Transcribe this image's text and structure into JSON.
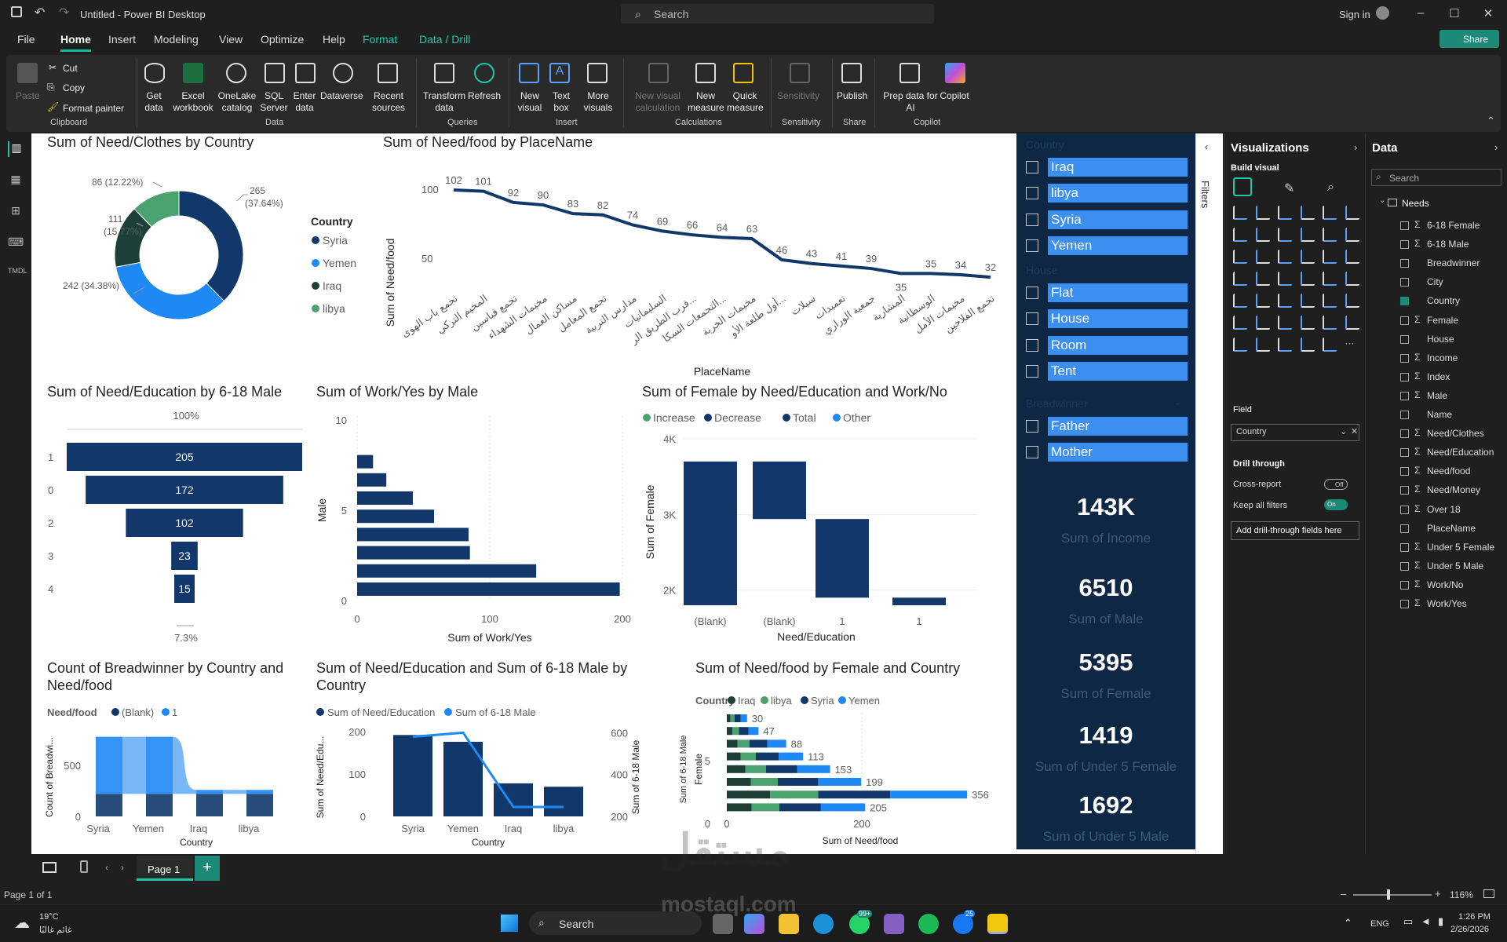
{
  "window": {
    "title": "Untitled - Power BI Desktop",
    "search": "Search",
    "sign_in": "Sign in"
  },
  "menu": [
    "File",
    "Home",
    "Insert",
    "Modeling",
    "View",
    "Optimize",
    "Help",
    "Format",
    "Data / Drill"
  ],
  "share": "Share",
  "ribbon": {
    "clipboard": {
      "paste": "Paste",
      "cut": "Cut",
      "copy": "Copy",
      "format_painter": "Format painter",
      "group": "Clipboard"
    },
    "data": {
      "get_data": "Get data",
      "excel": "Excel workbook",
      "onelake": "OneLake catalog",
      "sql": "SQL Server",
      "enter": "Enter data",
      "dataverse": "Dataverse",
      "recent": "Recent sources",
      "group": "Data"
    },
    "queries": {
      "transform": "Transform data",
      "refresh": "Refresh",
      "group": "Queries"
    },
    "insert": {
      "new_visual": "New visual",
      "text_box": "Text box",
      "more_visuals": "More visuals",
      "group": "Insert"
    },
    "calculations": {
      "new_visual_calc": "New visual calculation",
      "new_measure": "New measure",
      "quick_measure": "Quick measure",
      "group": "Calculations"
    },
    "sensitivity": {
      "label": "Sensitivity",
      "group": "Sensitivity"
    },
    "share": {
      "publish": "Publish",
      "group": "Share"
    },
    "copilot": {
      "prep": "Prep data for AI",
      "copilot": "Copilot",
      "group": "Copilot"
    }
  },
  "visuals": {
    "donut": {
      "title": "Sum of Need/Clothes by Country",
      "legend_title": "Country",
      "labels": [
        "265 (37.64%)",
        "242 (34.38%)",
        "111 (15.77%)",
        "86 (12.22%)"
      ]
    },
    "line": {
      "title": "Sum of Need/food by PlaceName",
      "ylabel": "Sum of Need/food",
      "xlabel": "PlaceName"
    },
    "funnel": {
      "title": "Sum of Need/Education by 6-18 Male",
      "top_pct": "100%",
      "bottom_pct": "7.3%"
    },
    "hbar": {
      "title": "Sum of Work/Yes by Male",
      "ylabel": "Male",
      "xlabel": "Sum of Work/Yes"
    },
    "waterfall": {
      "title": "Sum of Female by Need/Education and Work/No",
      "ylabel": "Sum of Female",
      "xlabel": "Need/Education"
    },
    "ribbonchart": {
      "title": "Count of Breadwinner by Country and Need/food",
      "legend_title": "Need/food",
      "ylabel": "Count of Breadwi...",
      "xlabel": "Country"
    },
    "combo": {
      "title": "Sum of Need/Education and Sum of 6-18 Male by Country",
      "ylabel": "Sum of Need/Edu...",
      "y2label": "Sum of 6-18 Male",
      "xlabel": "Country"
    },
    "stacked": {
      "title": "Sum of Need/food by Female and Country",
      "legend_title": "Country",
      "ylabel": "Female",
      "xlabel": "Sum of Need/food"
    }
  },
  "slicer": {
    "country_header": "Country",
    "country": [
      "Iraq",
      "libya",
      "Syria",
      "Yemen"
    ],
    "house_header": "House",
    "house": [
      "Flat",
      "House",
      "Room",
      "Tent"
    ],
    "breadwinner_header": "Breadwinner",
    "breadwinner": [
      "Father",
      "Mother"
    ],
    "cards": [
      {
        "value": "143K",
        "label": "Sum of Income"
      },
      {
        "value": "6510",
        "label": "Sum of Male"
      },
      {
        "value": "5395",
        "label": "Sum of Female"
      },
      {
        "value": "1419",
        "label": "Sum of Under 5 Female"
      },
      {
        "value": "1692",
        "label": "Sum of Under 5 Male"
      }
    ]
  },
  "filters_label": "Filters",
  "viz_pane": {
    "title": "Visualizations",
    "build": "Build visual",
    "field_label": "Field",
    "field_value": "Country",
    "drill_through": "Drill through",
    "cross_report": "Cross-report",
    "cross_state": "Off",
    "keep_filters": "Keep all filters",
    "keep_state": "On",
    "add_drill": "Add drill-through fields here"
  },
  "data_pane": {
    "title": "Data",
    "search": "Search",
    "table": "Needs",
    "fields": [
      "6-18 Female",
      "6-18 Male",
      "Breadwinner",
      "City",
      "Country",
      "Female",
      "House",
      "Income",
      "Index",
      "Male",
      "Name",
      "Need/Clothes",
      "Need/Education",
      "Need/food",
      "Need/Money",
      "Over 18",
      "PlaceName",
      "Under 5 Female",
      "Under 5 Male",
      "Work/No",
      "Work/Yes"
    ]
  },
  "page_tab": "Page 1",
  "status": {
    "page": "Page 1 of 1",
    "zoom": "116%"
  },
  "taskbar": {
    "weather_temp": "19°C",
    "weather_desc": "غائم غالبًا",
    "search": "Search",
    "lang": "ENG",
    "time": "1:26 PM",
    "date": "2/26/2026",
    "badge1": "99+",
    "badge2": "25"
  },
  "watermark": {
    "text1": "مستقل",
    "text2": "mostaql.com"
  },
  "colors": {
    "navy": "#12386b",
    "blue": "#1e88f5",
    "dark": "#1c3f37",
    "green": "#4aa36e",
    "accent": "#0fb8a0"
  },
  "chart_data": [
    {
      "type": "pie",
      "title": "Sum of Need/Clothes by Country",
      "categories": [
        "Syria",
        "Yemen",
        "Iraq",
        "libya"
      ],
      "values": [
        265,
        242,
        111,
        86
      ],
      "legend": "Country"
    },
    {
      "type": "line",
      "title": "Sum of Need/food by PlaceName",
      "xlabel": "PlaceName",
      "ylabel": "Sum of Need/food",
      "categories": [
        "تجمع باب الهوى",
        "المخيم التركي",
        "تجمع قباسين",
        "مخيمات الشهداء",
        "مساكن العمال",
        "تجمع المعامل",
        "مدارس التربية",
        "السليمانيات",
        "قرب الطريق الر...",
        "التجمعات السكا...",
        "مخيمات الخربة",
        "أول طلعة الأو...",
        "سيلات",
        "تعميدات",
        "جمعية الوراري",
        "المشارية",
        "الوسطانية",
        "مخيمات الأمل",
        "تجمع الفلاحين"
      ],
      "values": [
        102,
        101,
        92,
        90,
        83,
        82,
        74,
        69,
        66,
        64,
        63,
        46,
        43,
        41,
        39,
        35,
        35,
        34,
        32
      ],
      "ylim": [
        25,
        105
      ]
    },
    {
      "type": "bar",
      "title": "Sum of Need/Education by 6-18 Male",
      "categories": [
        "1",
        "0",
        "2",
        "3",
        "4"
      ],
      "values": [
        205,
        172,
        102,
        23,
        15
      ]
    },
    {
      "type": "bar",
      "title": "Sum of Work/Yes by Male",
      "xlabel": "Sum of Work/Yes",
      "ylabel": "Male",
      "xlim": [
        0,
        200
      ],
      "ylim": [
        0,
        10
      ],
      "x": [
        1,
        2,
        3,
        4,
        5,
        6,
        7,
        8
      ],
      "values": [
        12,
        22,
        42,
        58,
        84,
        85,
        135,
        198
      ]
    },
    {
      "type": "bar",
      "title": "Sum of Female by Need/Education and Work/No",
      "xlabel": "Need/Education",
      "ylabel": "Sum of Female",
      "categories": [
        "(Blank)",
        "(Blank)",
        "1",
        "1"
      ],
      "legend": [
        "Increase",
        "Decrease",
        "Total",
        "Other"
      ],
      "ylim": [
        1800,
        4000
      ],
      "bars": [
        {
          "from": 3700,
          "to": 1800
        },
        {
          "from": 3700,
          "to": 2940
        },
        {
          "from": 2940,
          "to": 1900
        },
        {
          "from": 1900,
          "to": 1800
        }
      ]
    },
    {
      "type": "area",
      "title": "Count of Breadwinner by Country and Need/food",
      "xlabel": "Country",
      "ylabel": "Count of Breadwi...",
      "categories": [
        "Syria",
        "Yemen",
        "Iraq",
        "libya"
      ],
      "series": [
        {
          "name": "(Blank)",
          "values": [
            220,
            220,
            220,
            220
          ]
        },
        {
          "name": "1",
          "values": [
            780,
            780,
            260,
            260
          ]
        }
      ],
      "ylim": [
        0,
        1000
      ]
    },
    {
      "type": "bar",
      "title": "Sum of Need/Education and Sum of 6-18 Male by Country",
      "xlabel": "Country",
      "categories": [
        "Syria",
        "Yemen",
        "Iraq",
        "libya"
      ],
      "series": [
        {
          "name": "Sum of Need/Education",
          "values": [
            192,
            176,
            78,
            70
          ]
        },
        {
          "name": "Sum of 6-18 Male",
          "values": [
            580,
            600,
            245,
            245
          ]
        }
      ],
      "ylim": [
        0,
        200
      ],
      "y2lim": [
        200,
        650
      ]
    },
    {
      "type": "bar",
      "title": "Sum of Need/food by Female and Country",
      "xlabel": "Sum of Need/food",
      "ylabel": "Female",
      "legend": [
        "Iraq",
        "libya",
        "Syria",
        "Yemen"
      ],
      "totals": [
        30,
        47,
        88,
        113,
        153,
        199,
        356,
        205
      ],
      "xlim": [
        0,
        380
      ]
    }
  ]
}
